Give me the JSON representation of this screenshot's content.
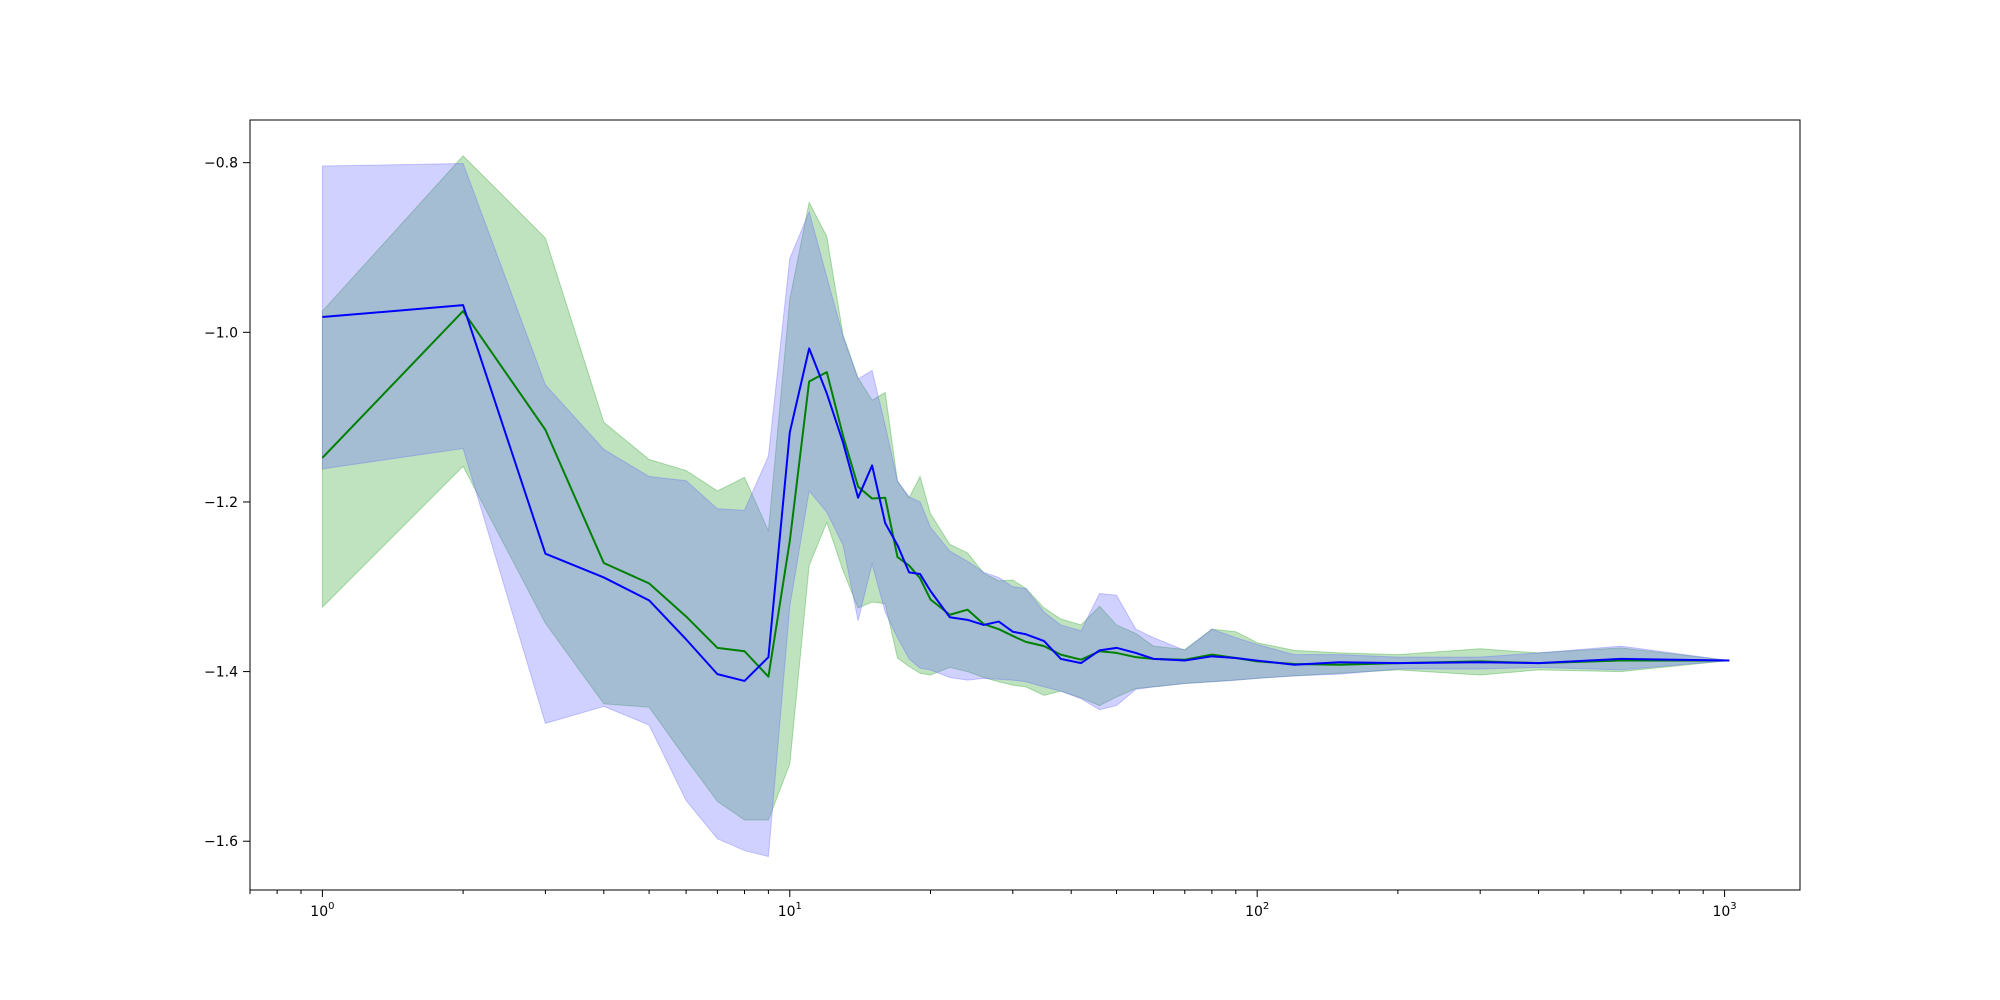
{
  "chart_data": {
    "type": "line",
    "title": "",
    "xlabel": "",
    "ylabel": "",
    "x_scale": "log",
    "xlim": [
      0.7,
      1450
    ],
    "ylim": [
      -1.6575,
      -0.7497
    ],
    "grid": false,
    "legend": "none",
    "x_ticks": [
      {
        "value": 1,
        "base": "10",
        "exp": "0"
      },
      {
        "value": 10,
        "base": "10",
        "exp": "1"
      },
      {
        "value": 100,
        "base": "10",
        "exp": "2"
      },
      {
        "value": 1000,
        "base": "10",
        "exp": "3"
      }
    ],
    "y_ticks": [
      {
        "value": -0.8,
        "label": "−0.8"
      },
      {
        "value": -1.0,
        "label": "−1.0"
      },
      {
        "value": -1.2,
        "label": "−1.2"
      },
      {
        "value": -1.4,
        "label": "−1.4"
      },
      {
        "value": -1.6,
        "label": "−1.6"
      }
    ],
    "series": [
      {
        "color": "#008000",
        "band_color": "#2ca02c",
        "x": [
          1,
          2,
          3,
          4,
          5,
          6,
          7,
          8,
          9,
          10,
          11,
          12,
          13,
          14,
          15,
          16,
          17,
          18,
          19,
          20,
          22,
          24,
          26,
          28,
          30,
          32,
          35,
          38,
          42,
          46,
          50,
          55,
          60,
          70,
          80,
          90,
          100,
          120,
          150,
          200,
          300,
          400,
          600,
          1024
        ],
        "y": [
          -1.148,
          -0.975,
          -1.115,
          -1.272,
          -1.296,
          -1.335,
          -1.372,
          -1.376,
          -1.406,
          -1.246,
          -1.058,
          -1.047,
          -1.122,
          -1.182,
          -1.196,
          -1.195,
          -1.265,
          -1.275,
          -1.29,
          -1.315,
          -1.333,
          -1.327,
          -1.344,
          -1.35,
          -1.358,
          -1.365,
          -1.37,
          -1.38,
          -1.386,
          -1.376,
          -1.378,
          -1.383,
          -1.385,
          -1.386,
          -1.38,
          -1.384,
          -1.388,
          -1.391,
          -1.392,
          -1.39,
          -1.388,
          -1.39,
          -1.387,
          -1.387
        ],
        "upper": [
          -0.975,
          -0.792,
          -0.889,
          -1.106,
          -1.15,
          -1.163,
          -1.187,
          -1.171,
          -1.234,
          -0.961,
          -0.847,
          -0.887,
          -1.003,
          -1.054,
          -1.08,
          -1.071,
          -1.176,
          -1.195,
          -1.17,
          -1.214,
          -1.25,
          -1.26,
          -1.284,
          -1.293,
          -1.292,
          -1.302,
          -1.325,
          -1.338,
          -1.345,
          -1.323,
          -1.345,
          -1.355,
          -1.37,
          -1.374,
          -1.35,
          -1.353,
          -1.366,
          -1.375,
          -1.378,
          -1.38,
          -1.373,
          -1.378,
          -1.372,
          -1.387
        ],
        "lower": [
          -1.324,
          -1.158,
          -1.343,
          -1.438,
          -1.442,
          -1.503,
          -1.553,
          -1.575,
          -1.575,
          -1.509,
          -1.275,
          -1.224,
          -1.281,
          -1.325,
          -1.318,
          -1.32,
          -1.384,
          -1.394,
          -1.402,
          -1.404,
          -1.395,
          -1.4,
          -1.407,
          -1.412,
          -1.416,
          -1.418,
          -1.428,
          -1.423,
          -1.431,
          -1.44,
          -1.43,
          -1.42,
          -1.418,
          -1.414,
          -1.412,
          -1.41,
          -1.408,
          -1.405,
          -1.402,
          -1.398,
          -1.404,
          -1.398,
          -1.4,
          -1.387
        ]
      },
      {
        "color": "#0000ff",
        "band_color": "#6666ff",
        "x": [
          1,
          2,
          3,
          4,
          5,
          6,
          7,
          8,
          9,
          10,
          11,
          12,
          13,
          14,
          15,
          16,
          17,
          18,
          19,
          20,
          22,
          24,
          26,
          28,
          30,
          32,
          35,
          38,
          42,
          46,
          50,
          55,
          60,
          70,
          80,
          90,
          100,
          120,
          150,
          200,
          300,
          400,
          600,
          1024
        ],
        "y": [
          -0.982,
          -0.968,
          -1.261,
          -1.289,
          -1.316,
          -1.362,
          -1.403,
          -1.411,
          -1.383,
          -1.118,
          -1.019,
          -1.072,
          -1.13,
          -1.195,
          -1.157,
          -1.225,
          -1.251,
          -1.283,
          -1.285,
          -1.305,
          -1.336,
          -1.339,
          -1.345,
          -1.341,
          -1.353,
          -1.356,
          -1.364,
          -1.385,
          -1.39,
          -1.375,
          -1.372,
          -1.378,
          -1.385,
          -1.387,
          -1.382,
          -1.384,
          -1.387,
          -1.392,
          -1.389,
          -1.39,
          -1.389,
          -1.39,
          -1.385,
          -1.387
        ],
        "upper": [
          -0.804,
          -0.801,
          -1.062,
          -1.138,
          -1.17,
          -1.175,
          -1.208,
          -1.21,
          -1.146,
          -0.913,
          -0.858,
          -0.935,
          -1.005,
          -1.055,
          -1.045,
          -1.11,
          -1.175,
          -1.194,
          -1.2,
          -1.23,
          -1.258,
          -1.27,
          -1.283,
          -1.289,
          -1.3,
          -1.302,
          -1.33,
          -1.345,
          -1.352,
          -1.308,
          -1.31,
          -1.35,
          -1.36,
          -1.375,
          -1.35,
          -1.36,
          -1.368,
          -1.38,
          -1.38,
          -1.383,
          -1.383,
          -1.378,
          -1.37,
          -1.387
        ],
        "lower": [
          -1.161,
          -1.137,
          -1.461,
          -1.441,
          -1.463,
          -1.552,
          -1.597,
          -1.611,
          -1.618,
          -1.323,
          -1.187,
          -1.212,
          -1.251,
          -1.34,
          -1.273,
          -1.33,
          -1.36,
          -1.385,
          -1.396,
          -1.398,
          -1.407,
          -1.41,
          -1.408,
          -1.409,
          -1.41,
          -1.412,
          -1.418,
          -1.423,
          -1.432,
          -1.445,
          -1.44,
          -1.421,
          -1.418,
          -1.414,
          -1.412,
          -1.41,
          -1.408,
          -1.405,
          -1.403,
          -1.397,
          -1.397,
          -1.395,
          -1.398,
          -1.387
        ]
      }
    ]
  }
}
